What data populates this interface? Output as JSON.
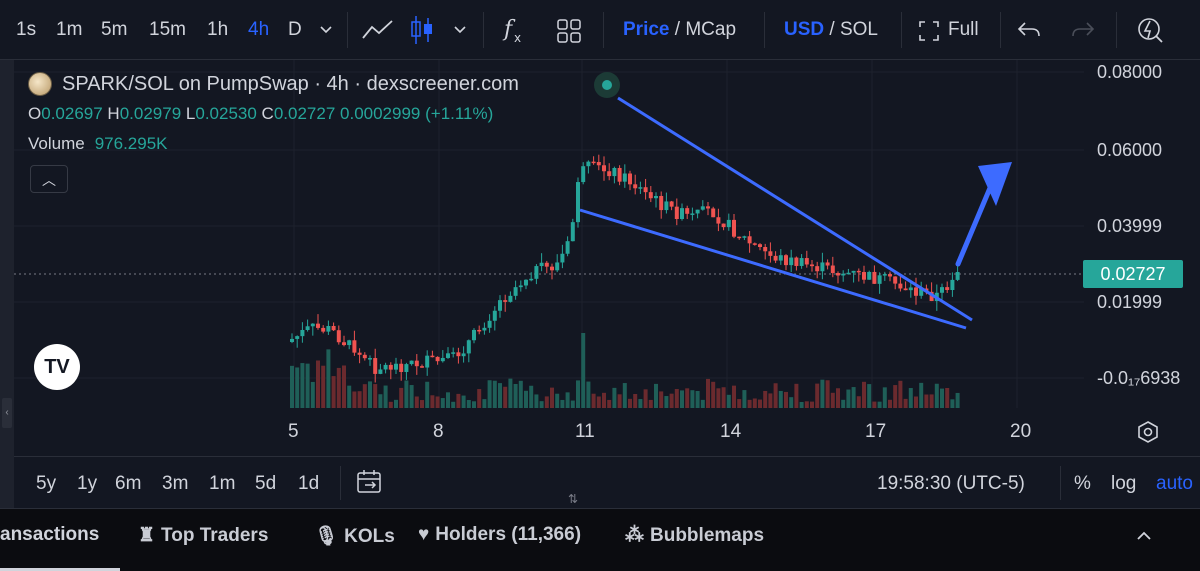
{
  "toolbar": {
    "intervals": [
      "1s",
      "1m",
      "5m",
      "15m",
      "1h",
      "4h",
      "D"
    ],
    "active_interval": "4h",
    "price_label": "Price",
    "mcap_label": "/ MCap",
    "usd_label": "USD",
    "sol_label": "/ SOL",
    "full_label": "Full"
  },
  "legend": {
    "title": "SPARK/SOL on PumpSwap · 4h · dexscreener.com",
    "o_key": "O",
    "o_val": "0.02697",
    "h_key": "H",
    "h_val": "0.02979",
    "l_key": "L",
    "l_val": "0.02530",
    "c_key": "C",
    "c_val": "0.02727",
    "change": "0.0002999 (+1.11%)",
    "volume_label": "Volume",
    "volume_value": "976.295K"
  },
  "price_axis": {
    "labels": [
      "0.08000",
      "0.06000",
      "0.03999",
      "0.01999",
      "-0.0₁₇6938"
    ],
    "current_price": "0.02727"
  },
  "time_axis": {
    "labels": [
      "5",
      "8",
      "11",
      "14",
      "17",
      "20"
    ]
  },
  "range_bar": {
    "ranges": [
      "5y",
      "1y",
      "6m",
      "3m",
      "1m",
      "5d",
      "1d"
    ],
    "clock": "19:58:30 (UTC-5)",
    "percent_label": "%",
    "log_label": "log",
    "auto_label": "auto"
  },
  "bottom_tabs": [
    {
      "label": "ansactions",
      "icon": ""
    },
    {
      "label": "Top Traders",
      "icon": "trophy-icon"
    },
    {
      "label": "KOLs",
      "icon": "microphone-icon"
    },
    {
      "label": "Holders (11,366)",
      "icon": "heart-icon"
    },
    {
      "label": "Bubblemaps",
      "icon": "bubblemaps-icon"
    }
  ],
  "colors": {
    "up": "#26a69a",
    "down": "#ef5350",
    "trendline": "#3d6bff",
    "background": "#131722"
  }
}
